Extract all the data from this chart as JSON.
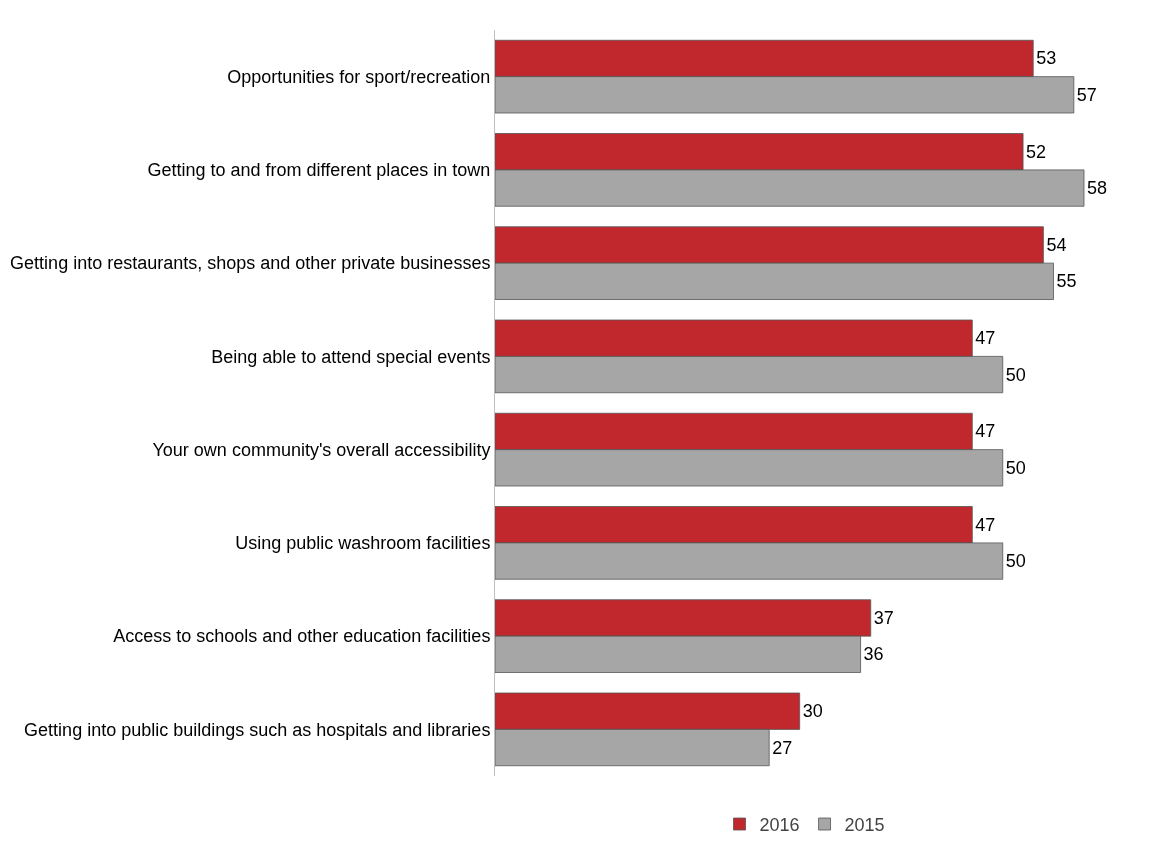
{
  "chart_data": {
    "type": "bar",
    "orientation": "horizontal",
    "categories": [
      "Opportunities for sport/recreation",
      "Getting to and from different places in town",
      "Getting into restaurants, shops and other private businesses",
      "Being able to attend special events",
      "Your own community's overall accessibility",
      "Using public washroom facilities",
      "Access to schools and other education facilities",
      "Getting into public buildings such as hospitals and libraries"
    ],
    "series": [
      {
        "name": "2016",
        "color": "#c0282d",
        "values": [
          53,
          52,
          54,
          47,
          47,
          47,
          37,
          30
        ]
      },
      {
        "name": "2015",
        "color": "#a6a6a6",
        "values": [
          57,
          58,
          55,
          50,
          50,
          50,
          36,
          27
        ]
      }
    ],
    "data_labels": true,
    "tick_labels": "y",
    "legend": "bottom"
  }
}
